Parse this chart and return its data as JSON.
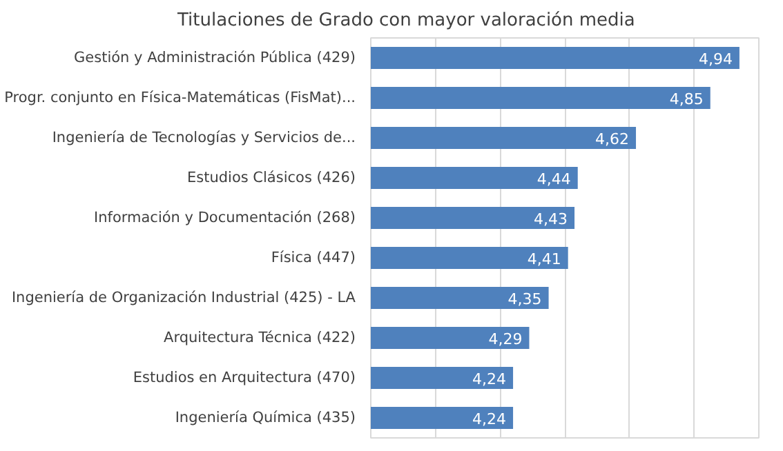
{
  "chart_data": {
    "type": "bar",
    "orientation": "horizontal",
    "title": "Titulaciones de Grado con mayor valoración media",
    "categories": [
      "Gestión y Administración Pública (429)",
      "Progr. conjunto en Física-Matemáticas (FisMat)...",
      "Ingeniería de Tecnologías y Servicios de...",
      "Estudios Clásicos (426)",
      "Información y Documentación (268)",
      "Física (447)",
      "Ingeniería de Organización Industrial (425) - LA",
      "Arquitectura Técnica (422)",
      "Estudios en Arquitectura (470)",
      "Ingeniería Química (435)"
    ],
    "values": [
      4.94,
      4.85,
      4.62,
      4.44,
      4.43,
      4.41,
      4.35,
      4.29,
      4.24,
      4.24
    ],
    "value_labels": [
      "4,94",
      "4,85",
      "4,62",
      "4,44",
      "4,43",
      "4,41",
      "4,35",
      "4,29",
      "4,24",
      "4,24"
    ],
    "color": "#4f81bd",
    "xlim": [
      3.8,
      5.0
    ],
    "grid": "x",
    "tick_labels": "y"
  }
}
